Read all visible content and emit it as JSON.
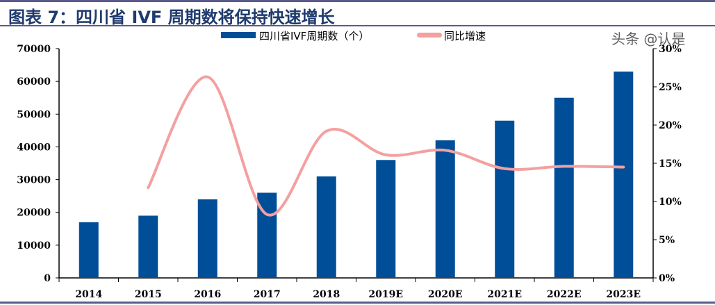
{
  "title": "图表 7：四川省 IVF 周期数将保持快速增长",
  "watermark": "头条 @认是",
  "chart_data": {
    "type": "bar+line",
    "categories": [
      "2014",
      "2015",
      "2016",
      "2017",
      "2018",
      "2019E",
      "2020E",
      "2021E",
      "2022E",
      "2023E"
    ],
    "series": [
      {
        "name": "四川省IVF周期数（个）",
        "type": "bar",
        "axis": "left",
        "color": "#004e98",
        "values": [
          17000,
          19000,
          24000,
          26000,
          31000,
          36000,
          42000,
          48000,
          55000,
          63000
        ]
      },
      {
        "name": "同比增速",
        "type": "line",
        "axis": "right",
        "color": "#f4a0a0",
        "values": [
          null,
          11.8,
          26.3,
          8.3,
          19.2,
          16.1,
          16.7,
          14.3,
          14.6,
          14.5
        ]
      }
    ],
    "y_left": {
      "range": [
        0,
        70000
      ],
      "ticks": [
        "0",
        "10000",
        "20000",
        "30000",
        "40000",
        "50000",
        "60000",
        "70000"
      ]
    },
    "y_right": {
      "range": [
        0,
        30
      ],
      "ticks": [
        "0%",
        "5%",
        "10%",
        "15%",
        "20%",
        "25%",
        "30%"
      ]
    },
    "grid": false,
    "legend": "top"
  }
}
